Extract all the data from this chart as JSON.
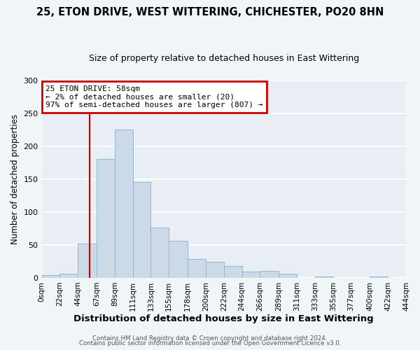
{
  "title": "25, ETON DRIVE, WEST WITTERING, CHICHESTER, PO20 8HN",
  "subtitle": "Size of property relative to detached houses in East Wittering",
  "xlabel": "Distribution of detached houses by size in East Wittering",
  "ylabel": "Number of detached properties",
  "bar_color": "#ccdae8",
  "bar_edge_color": "#90b8d0",
  "bin_edges": [
    0,
    22,
    44,
    67,
    89,
    111,
    133,
    155,
    178,
    200,
    222,
    244,
    266,
    289,
    311,
    333,
    355,
    377,
    400,
    422,
    444
  ],
  "bin_labels": [
    "0sqm",
    "22sqm",
    "44sqm",
    "67sqm",
    "89sqm",
    "111sqm",
    "133sqm",
    "155sqm",
    "178sqm",
    "200sqm",
    "222sqm",
    "244sqm",
    "266sqm",
    "289sqm",
    "311sqm",
    "333sqm",
    "355sqm",
    "377sqm",
    "400sqm",
    "422sqm",
    "444sqm"
  ],
  "bar_heights": [
    4,
    6,
    52,
    181,
    226,
    146,
    77,
    56,
    29,
    24,
    18,
    10,
    11,
    6,
    0,
    2,
    0,
    0,
    2,
    0
  ],
  "property_line_x": 58,
  "property_line_color": "#cc0000",
  "ylim": [
    0,
    300
  ],
  "yticks": [
    0,
    50,
    100,
    150,
    200,
    250,
    300
  ],
  "annotation_title": "25 ETON DRIVE: 58sqm",
  "annotation_line1": "← 2% of detached houses are smaller (20)",
  "annotation_line2": "97% of semi-detached houses are larger (807) →",
  "annotation_box_color": "#cc0000",
  "footer_line1": "Contains HM Land Registry data © Crown copyright and database right 2024.",
  "footer_line2": "Contains public sector information licensed under the Open Government Licence v3.0.",
  "plot_bg_color": "#e8eef4",
  "fig_bg_color": "#f0f5f8",
  "grid_color": "#ffffff",
  "title_fontsize": 10.5,
  "subtitle_fontsize": 9,
  "xlabel_fontsize": 9.5,
  "ylabel_fontsize": 8.5,
  "tick_fontsize": 7.5,
  "ytick_fontsize": 8,
  "footer_fontsize": 6.2
}
